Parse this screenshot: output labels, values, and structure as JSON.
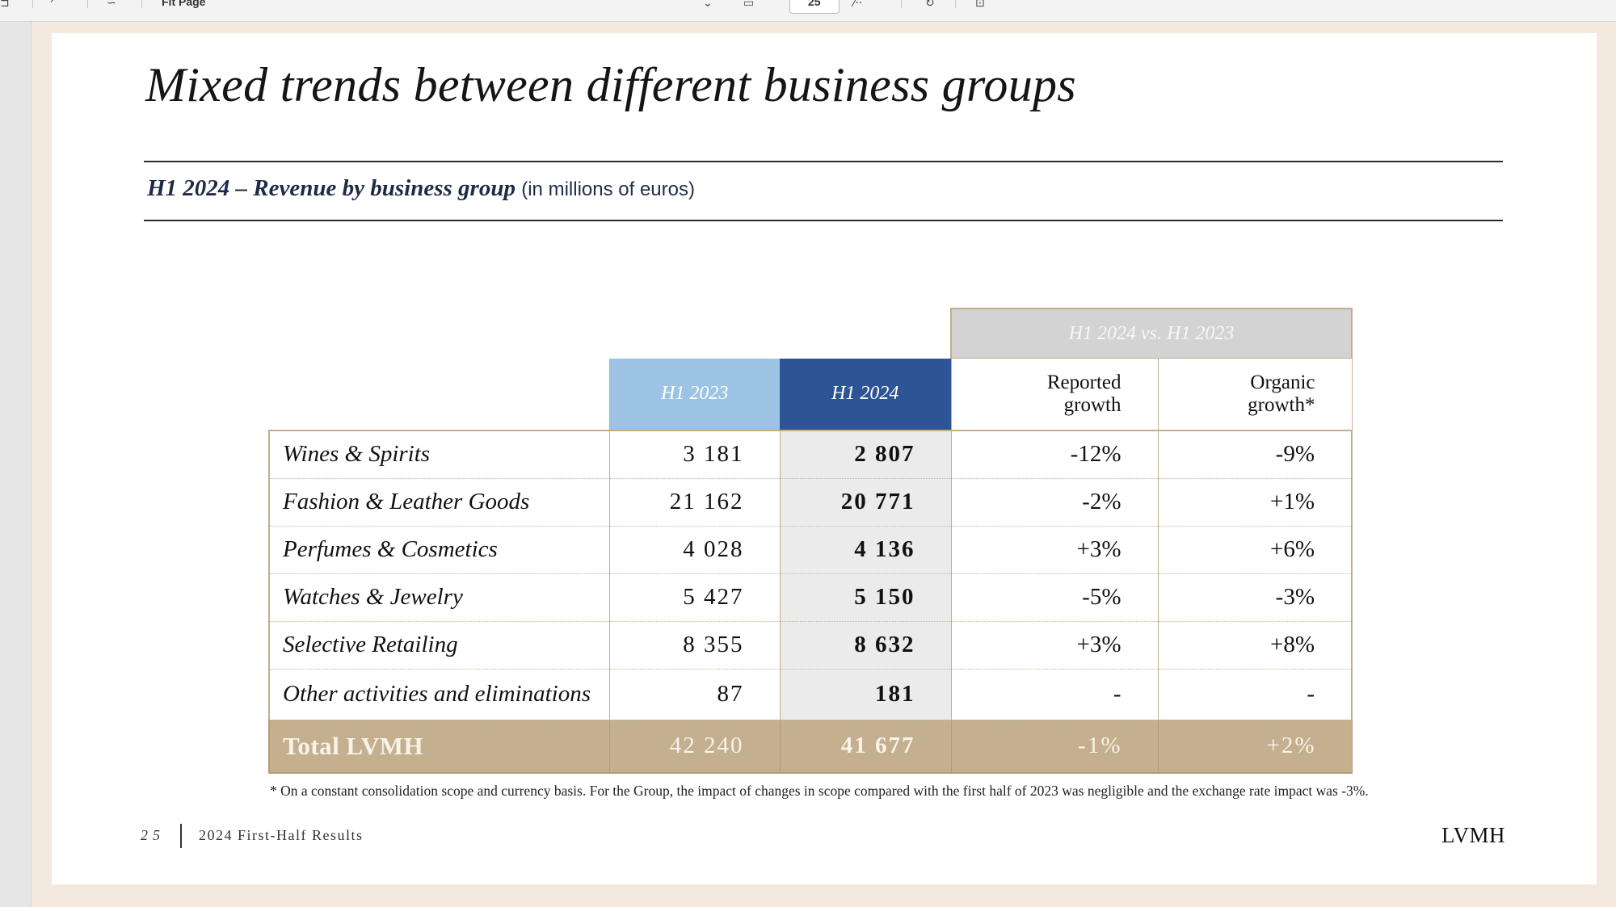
{
  "toolbar": {
    "zoom_text": "Fit Page",
    "page_text": "25"
  },
  "slide": {
    "title": "Mixed trends between different business groups",
    "subtitle_main": "H1 2024 – Revenue by business group",
    "subtitle_unit": "(in millions of euros)",
    "table": {
      "group_header": "H1 2024 vs. H1 2023",
      "col_h1_2023": "H1 2023",
      "col_h1_2024": "H1 2024",
      "col_reported_line1": "Reported",
      "col_reported_line2": "growth",
      "col_organic_line1": "Organic",
      "col_organic_line2": "growth*",
      "rows": [
        {
          "label": "Wines & Spirits",
          "h1_2023": "3 181",
          "h1_2024": "2 807",
          "reported": "-12%",
          "organic": "-9%"
        },
        {
          "label": "Fashion & Leather Goods",
          "h1_2023": "21 162",
          "h1_2024": "20 771",
          "reported": "-2%",
          "organic": "+1%"
        },
        {
          "label": "Perfumes & Cosmetics",
          "h1_2023": "4 028",
          "h1_2024": "4 136",
          "reported": "+3%",
          "organic": "+6%"
        },
        {
          "label": "Watches & Jewelry",
          "h1_2023": "5 427",
          "h1_2024": "5 150",
          "reported": "-5%",
          "organic": "-3%"
        },
        {
          "label": "Selective Retailing",
          "h1_2023": "8 355",
          "h1_2024": "8 632",
          "reported": "+3%",
          "organic": "+8%"
        },
        {
          "label": "Other activities and eliminations",
          "h1_2023": "87",
          "h1_2024": "181",
          "reported": "-",
          "organic": "-"
        }
      ],
      "total": {
        "label": "Total LVMH",
        "h1_2023": "42 240",
        "h1_2024": "41 677",
        "reported": "-1%",
        "organic": "+2%"
      }
    },
    "footnote": "* On a constant consolidation scope and currency basis. For the Group, the impact of changes in scope compared with the first half of 2023 was negligible and the exchange rate impact was -3%.",
    "footer": {
      "page_number": "25",
      "doc_title": "2024 First-Half Results",
      "brand": "LVMH"
    }
  }
}
